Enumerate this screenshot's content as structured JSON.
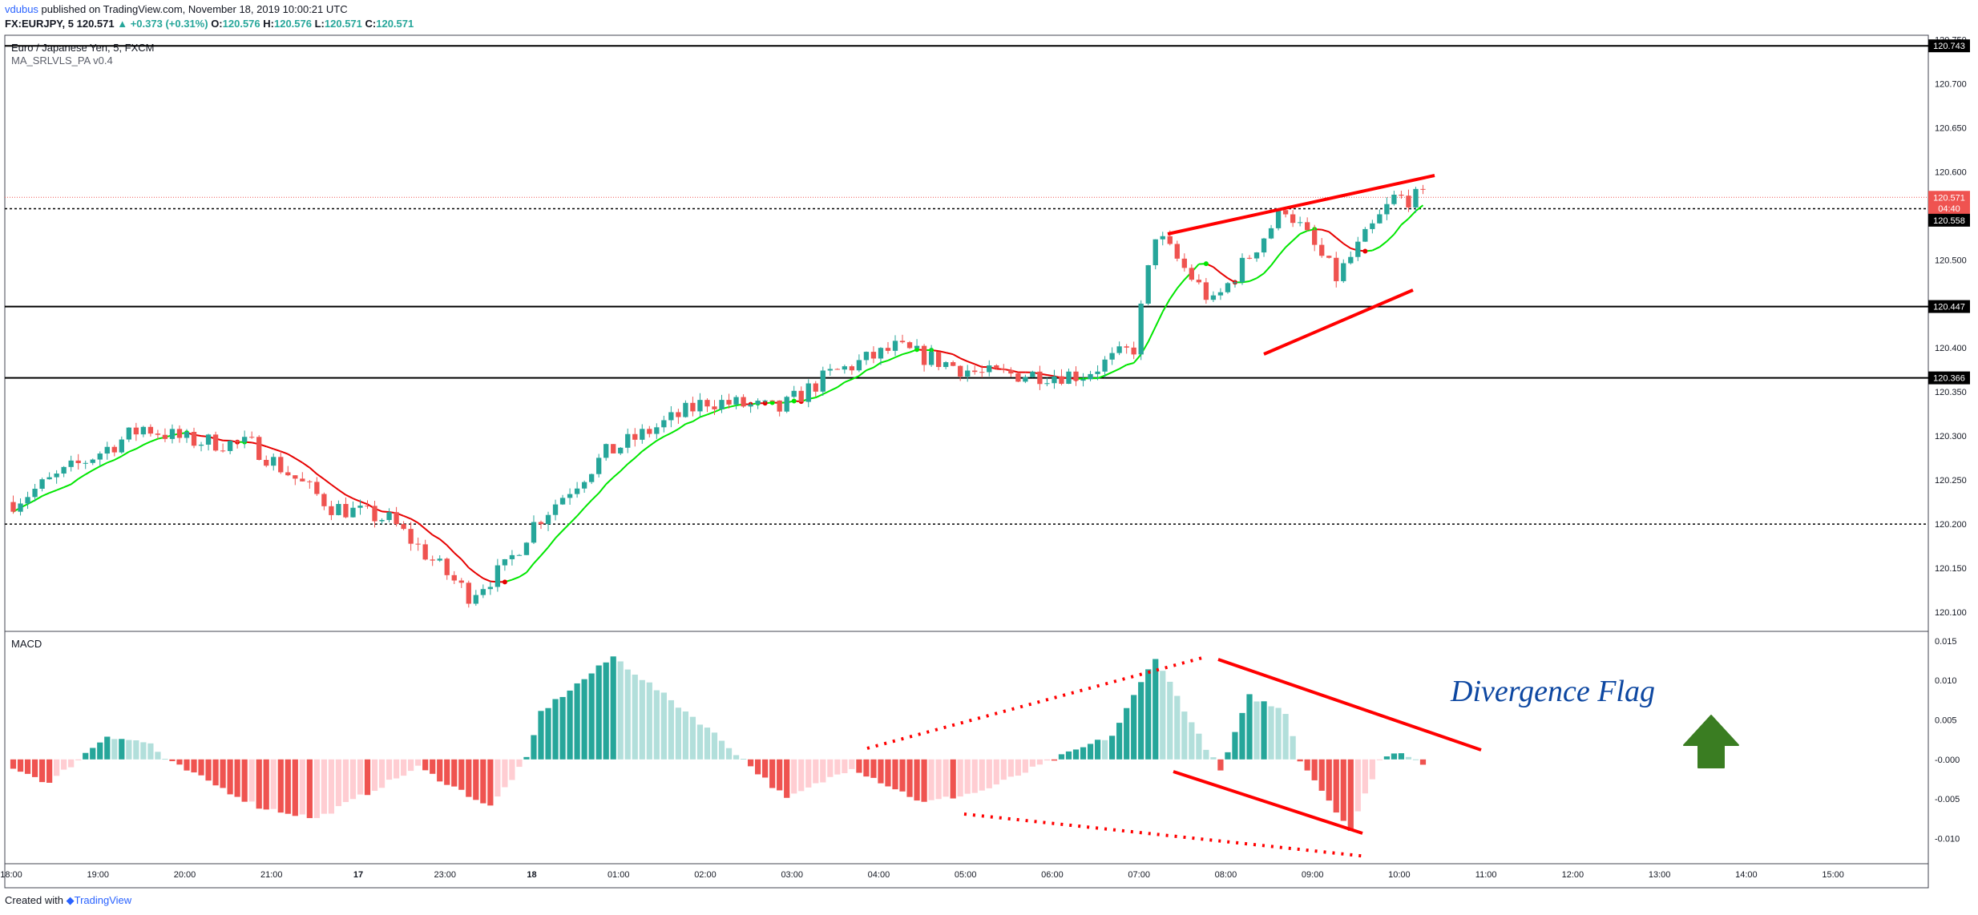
{
  "header": {
    "author": "vdubus",
    "published_text": "published on TradingView.com, November 18, 2019 10:00:21 UTC",
    "symbol_line": {
      "symbol": "FX:EURJPY, 5",
      "last": "120.571",
      "change": "▲ +0.373 (+0.31%)",
      "o_label": "O:",
      "o": "120.576",
      "h_label": "H:",
      "h": "120.576",
      "l_label": "L:",
      "l": "120.571",
      "c_label": "C:",
      "c": "120.571"
    }
  },
  "chart": {
    "title": "Euro / Japanese Yen, 5, FXCM",
    "indicator": "MA_SRLVLS_PA v0.4",
    "price_axis_labels": [
      "120.750",
      "120.700",
      "120.650",
      "120.600",
      "120.550",
      "120.500",
      "120.450",
      "120.400",
      "120.350",
      "120.300",
      "120.250",
      "120.200",
      "120.150",
      "120.100"
    ],
    "price_badges": [
      {
        "text": "120.743",
        "price": 120.743,
        "color": "#000000"
      },
      {
        "text": "120.571",
        "price": 120.571,
        "color": "#ef5350"
      },
      {
        "text": "04:40",
        "price": 120.5585,
        "color": "#ef5350"
      },
      {
        "text": "120.558",
        "price": 120.545,
        "color": "#000000"
      },
      {
        "text": "120.447",
        "price": 120.447,
        "color": "#000000"
      },
      {
        "text": "120.366",
        "price": 120.366,
        "color": "#000000"
      }
    ],
    "macd_label": "MACD",
    "macd_axis_labels": [
      "0.015",
      "0.010",
      "0.005",
      "-0.000",
      "-0.005",
      "-0.010"
    ],
    "time_labels": [
      "18:00",
      "19:00",
      "20:00",
      "21:00",
      "17",
      "23:00",
      "18",
      "01:00",
      "02:00",
      "03:00",
      "04:00",
      "05:00",
      "06:00",
      "07:00",
      "08:00",
      "09:00",
      "10:00",
      "11:00",
      "12:00",
      "13:00",
      "14:00",
      "15:00"
    ],
    "annotation": "Divergence Flag",
    "colors": {
      "up": "#26a69a",
      "down": "#ef5350",
      "ma_up": "#00e600",
      "ma_down": "#e60000",
      "hist_up_light": "#b2dfdb",
      "hist_down_light": "#ffcdd2",
      "drawing": "#ff0000",
      "arrow": "#3a7d22",
      "annotation_text": "#0d47a1"
    }
  },
  "chart_data": {
    "type": "candlestick",
    "title": "Euro / Japanese Yen, 5, FXCM",
    "ylim": [
      120.08,
      120.755
    ],
    "horizontal_levels": [
      120.743,
      120.558,
      120.447,
      120.366,
      120.2
    ],
    "price_path_anchors": [
      {
        "bar": 0,
        "price": 120.225
      },
      {
        "bar": 18,
        "price": 120.31
      },
      {
        "bar": 24,
        "price": 120.295
      },
      {
        "bar": 33,
        "price": 120.29
      },
      {
        "bar": 44,
        "price": 120.22
      },
      {
        "bar": 52,
        "price": 120.205
      },
      {
        "bar": 63,
        "price": 120.12
      },
      {
        "bar": 68,
        "price": 120.15
      },
      {
        "bar": 72,
        "price": 120.2
      },
      {
        "bar": 82,
        "price": 120.28
      },
      {
        "bar": 96,
        "price": 120.34
      },
      {
        "bar": 106,
        "price": 120.33
      },
      {
        "bar": 113,
        "price": 120.37
      },
      {
        "bar": 122,
        "price": 120.4
      },
      {
        "bar": 134,
        "price": 120.37
      },
      {
        "bar": 148,
        "price": 120.37
      },
      {
        "bar": 155,
        "price": 120.4
      },
      {
        "bar": 158,
        "price": 120.53
      },
      {
        "bar": 166,
        "price": 120.45
      },
      {
        "bar": 176,
        "price": 120.56
      },
      {
        "bar": 183,
        "price": 120.48
      },
      {
        "bar": 191,
        "price": 120.57
      }
    ],
    "macd_ylim": [
      -0.013,
      0.016
    ],
    "macd_hist_anchors": [
      {
        "bar": 0,
        "value": -0.001
      },
      {
        "bar": 5,
        "value": -0.003
      },
      {
        "bar": 9,
        "value": 0
      },
      {
        "bar": 13,
        "value": 0.003
      },
      {
        "bar": 19,
        "value": 0.002
      },
      {
        "bar": 21,
        "value": 0
      },
      {
        "bar": 34,
        "value": -0.006
      },
      {
        "bar": 42,
        "value": -0.0075
      },
      {
        "bar": 56,
        "value": -0.001
      },
      {
        "bar": 66,
        "value": -0.006
      },
      {
        "bar": 71,
        "value": 0
      },
      {
        "bar": 73,
        "value": 0.006
      },
      {
        "bar": 83,
        "value": 0.013
      },
      {
        "bar": 96,
        "value": 0.004
      },
      {
        "bar": 101,
        "value": 0
      },
      {
        "bar": 107,
        "value": -0.005
      },
      {
        "bar": 116,
        "value": -0.001
      },
      {
        "bar": 126,
        "value": -0.0055
      },
      {
        "bar": 134,
        "value": -0.004
      },
      {
        "bar": 144,
        "value": 0
      },
      {
        "bar": 152,
        "value": 0.003
      },
      {
        "bar": 158,
        "value": 0.013
      },
      {
        "bar": 164,
        "value": 0.003
      },
      {
        "bar": 167,
        "value": -0.0015
      },
      {
        "bar": 171,
        "value": 0.008
      },
      {
        "bar": 176,
        "value": 0.006
      },
      {
        "bar": 178,
        "value": 0
      },
      {
        "bar": 185,
        "value": -0.009
      },
      {
        "bar": 189,
        "value": 0
      },
      {
        "bar": 192,
        "value": 0.001
      },
      {
        "bar": 195,
        "value": -0.0004
      }
    ],
    "bars": 196,
    "bars_per_hour": 12
  }
}
